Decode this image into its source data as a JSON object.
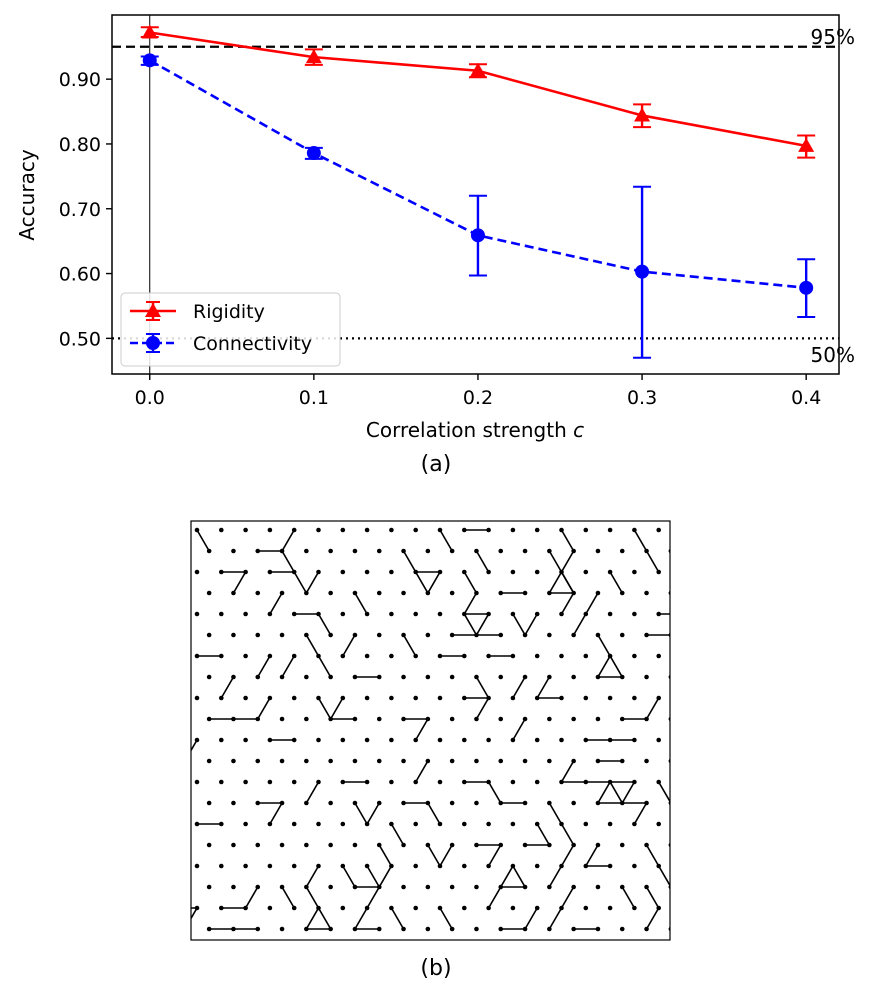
{
  "chart_data": [
    {
      "type": "line",
      "panel_label": "(a)",
      "title": "",
      "xlabel": "Correlation strength",
      "xlabel_symbol": "c",
      "ylabel": "Accuracy",
      "x": [
        0.0,
        0.1,
        0.2,
        0.3,
        0.4
      ],
      "xticks": [
        "0.0",
        "0.1",
        "0.2",
        "0.3",
        "0.4"
      ],
      "yticks": [
        "0.50",
        "0.60",
        "0.70",
        "0.80",
        "0.90"
      ],
      "xlim": [
        -0.023,
        0.42
      ],
      "ylim": [
        0.445,
        0.999
      ],
      "series": [
        {
          "name": "Rigidity",
          "color": "#ff0000",
          "marker": "triangle",
          "linestyle": "solid",
          "values": [
            0.972,
            0.934,
            0.913,
            0.844,
            0.797
          ],
          "err_low": [
            0.965,
            0.922,
            0.903,
            0.826,
            0.779
          ],
          "err_high": [
            0.98,
            0.946,
            0.923,
            0.861,
            0.813
          ]
        },
        {
          "name": "Connectivity",
          "color": "#0000ff",
          "marker": "circle",
          "linestyle": "dashed",
          "values": [
            0.929,
            0.786,
            0.659,
            0.603,
            0.578
          ],
          "err_low": [
            0.922,
            0.777,
            0.597,
            0.47,
            0.533
          ],
          "err_high": [
            0.935,
            0.794,
            0.72,
            0.734,
            0.622
          ]
        }
      ],
      "reference_lines": [
        {
          "value": 0.95,
          "label": "95%",
          "style": "dashed"
        },
        {
          "value": 0.5,
          "label": "50%",
          "style": "dotted"
        }
      ],
      "vertical_line_at_x": 0.0,
      "legend_position": "lower-left",
      "grid": false
    },
    {
      "type": "network-diagram",
      "panel_label": "(b)",
      "description_shown": "random network of dots on a triangular lattice with some bonds"
    }
  ]
}
